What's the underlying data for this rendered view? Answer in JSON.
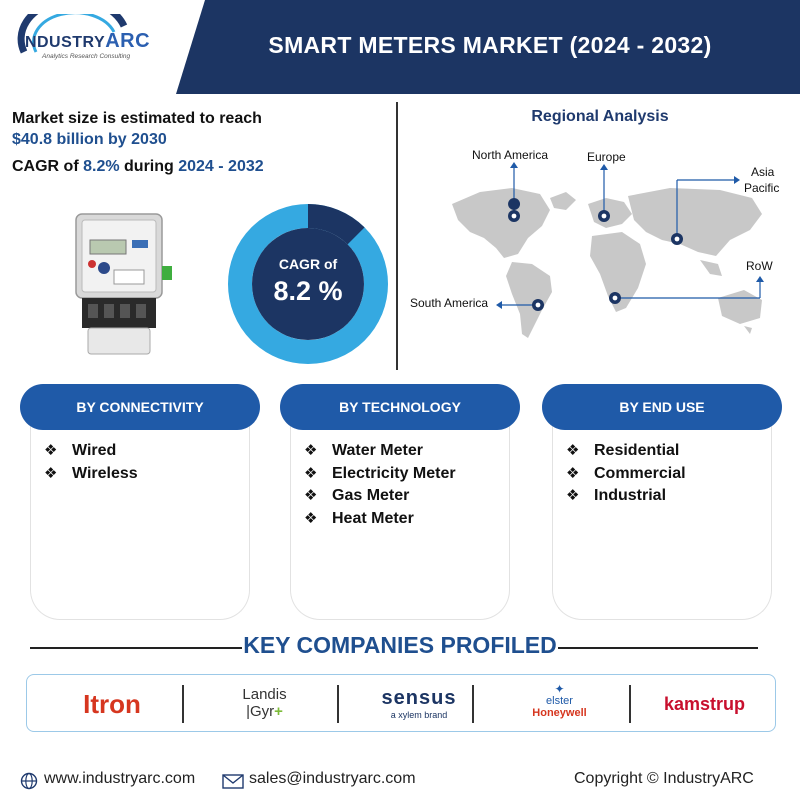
{
  "header": {
    "logo_text_a": "INDUSTRY",
    "logo_text_b": "ARC",
    "logo_sub": "Analytics  Research  Consulting",
    "title": "SMART METERS MARKET (2024 - 2032)",
    "colors": {
      "navy": "#1c3563",
      "blue": "#1f5aa8",
      "light_blue": "#35a9e1"
    }
  },
  "market": {
    "line1": "Market size is estimated to reach",
    "line2": "$40.8 billion by 2030",
    "line3_a": "CAGR of ",
    "line3_b": "8.2%",
    "line3_c": " during ",
    "line3_d": "2024 - 2032"
  },
  "cagr_donut": {
    "label": "CAGR of",
    "value": "8.2 %",
    "highlight_fraction": 0.125
  },
  "regional": {
    "title": "Regional Analysis",
    "regions": [
      "North America",
      "Europe",
      "Asia",
      "Pacific",
      "RoW",
      "South America"
    ]
  },
  "categories": [
    {
      "title": "BY CONNECTIVITY",
      "items": [
        "Wired",
        "Wireless"
      ]
    },
    {
      "title": "BY TECHNOLOGY",
      "items": [
        "Water Meter",
        "Electricity Meter",
        "Gas Meter",
        "Heat Meter"
      ]
    },
    {
      "title": "BY END USE",
      "items": [
        "Residential",
        "Commercial",
        "Industrial"
      ]
    }
  ],
  "key_companies": {
    "title": "KEY COMPANIES PROFILED",
    "itron": "Itron",
    "landis_a": "Landis",
    "landis_b": "|Gyr",
    "sensus": "sensus",
    "sensus_sub": "a xylem brand",
    "elster": "elster",
    "honeywell": "Honeywell",
    "kamstrup": "kamstrup"
  },
  "footer": {
    "website": "www.industryarc.com",
    "email": "sales@industryarc.com",
    "copyright": "Copyright © IndustryARC"
  },
  "icons": [
    "globe-icon",
    "envelope-icon",
    "map-pin-icon",
    "bullet-diamond-icon"
  ]
}
